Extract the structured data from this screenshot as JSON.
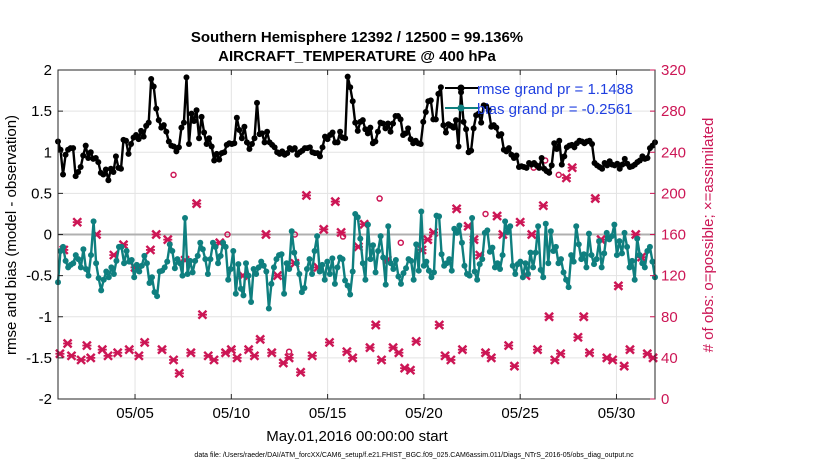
{
  "chart_data": {
    "type": "line",
    "title_line1": "Southern Hemisphere 12392 / 12500 = 99.136%",
    "title_line2": "AIRCRAFT_TEMPERATURE @ 400 hPa",
    "xlabel": "May.01,2016 00:00:00 start",
    "ylabel": "rmse and bias (model - observation)",
    "y2label": "# of obs: o=possible; ×=assimilated",
    "footnote": "data file: /Users/raeder/DAI/ATM_forcXX/CAM6_setup/f.e21.FHIST_BGC.f09_025.CAM6assim.011/Diags_NTrS_2016-05/obs_diag_output.nc",
    "xlim": [
      1,
      32
    ],
    "ylim": [
      -2,
      2
    ],
    "y2lim": [
      0,
      320
    ],
    "xticks": [
      5,
      10,
      15,
      20,
      25,
      30
    ],
    "xtick_labels": [
      "05/05",
      "05/10",
      "05/15",
      "05/20",
      "05/25",
      "05/30"
    ],
    "yticks": [
      2,
      1.5,
      1,
      0.5,
      0,
      -0.5,
      -1,
      -1.5,
      -2
    ],
    "ytick_labels": [
      "2",
      "1.5",
      "1",
      "0.5",
      "0",
      "-0.5",
      "-1",
      "-1.5",
      "-2"
    ],
    "y2ticks": [
      320,
      280,
      240,
      200,
      160,
      120,
      80,
      40,
      0
    ],
    "y2tick_labels": [
      "320",
      "280",
      "240",
      "200",
      "160",
      "120",
      "80",
      "40",
      "0"
    ],
    "colors": {
      "rmse": "#000000",
      "bias": "#0f7f7f",
      "obs": "#cc1655",
      "legend_text": "#1f3fe0",
      "zero_line": "#b0b0b0"
    },
    "series": [
      {
        "name": "rmse",
        "label": "rmse grand pr = 1.1488",
        "values": [
          1.13,
          1.03,
          0.73,
          0.97,
          1.03,
          1.05,
          1.05,
          0.71,
          0.76,
          0.82,
          0.96,
          1.08,
          0.93,
          1.0,
          0.92,
          0.93,
          0.88,
          0.75,
          0.73,
          0.79,
          0.66,
          0.8,
          0.76,
          0.95,
          0.81,
          0.8,
          1.15,
          1.14,
          0.98,
          1.1,
          1.18,
          1.21,
          1.16,
          1.26,
          1.19,
          1.32,
          1.36,
          1.89,
          1.8,
          1.53,
          1.39,
          1.3,
          1.33,
          1.25,
          1.13,
          1.08,
          1.07,
          1.01,
          1.06,
          1.3,
          1.36,
          1.91,
          1.1,
          1.47,
          1.38,
          1.51,
          1.17,
          1.43,
          1.24,
          1.1,
          1.17,
          1.07,
          0.9,
          0.98,
          0.91,
          0.99,
          1.0,
          1.09,
          1.11,
          1.1,
          1.11,
          1.42,
          1.27,
          1.17,
          1.31,
          1.12,
          1.04,
          1.1,
          1.17,
          1.6,
          1.22,
          1.23,
          1.12,
          1.25,
          1.12,
          1.09,
          1.06,
          1.0,
          0.98,
          1.01,
          0.97,
          0.99,
          1.05,
          1.03,
          1.05,
          0.97,
          1.0,
          1.02,
          1.05,
          1.05,
          1.06,
          1.0,
          0.99,
          0.99,
          0.95,
          1.06,
          1.19,
          1.16,
          1.21,
          1.24,
          1.12,
          1.12,
          1.25,
          1.18,
          1.17,
          1.92,
          1.79,
          1.62,
          1.36,
          1.26,
          1.37,
          1.39,
          1.28,
          1.23,
          1.3,
          1.11,
          1.13,
          1.25,
          1.36,
          1.35,
          1.29,
          1.35,
          1.25,
          1.35,
          1.44,
          1.44,
          1.4,
          1.21,
          1.23,
          1.29,
          1.16,
          1.11,
          1.14,
          1.11,
          1.1,
          1.37,
          1.49,
          1.62,
          1.63,
          1.4,
          1.4,
          1.71,
          1.79,
          1.33,
          1.24,
          1.34,
          1.32,
          1.3,
          1.39,
          1.07,
          1.73,
          1.37,
          1.28,
          1.0,
          1.02,
          1.29,
          1.45,
          1.47,
          1.36,
          1.57,
          1.56,
          1.51,
          1.31,
          1.33,
          1.3,
          1.2,
          1.22,
          1.03,
          1.01,
          1.05,
          0.97,
          0.93,
          0.96,
          0.82,
          0.83,
          0.82,
          0.81,
          0.87,
          0.85,
          0.87,
          0.84,
          0.81,
          0.93,
          0.8,
          0.77,
          0.75,
          0.84,
          1.11,
          1.04,
          1.14,
          0.85,
          0.95,
          1.06,
          1.08,
          1.09,
          1.06,
          1.11,
          1.14,
          1.13,
          1.11,
          1.13,
          1.14,
          1.1,
          0.87,
          0.84,
          0.82,
          0.8,
          0.87,
          0.84,
          0.89,
          0.85,
          0.84,
          0.86,
          0.8,
          0.85,
          0.92,
          0.86,
          0.82,
          0.83,
          0.85,
          0.88,
          0.9,
          0.95,
          0.92,
          0.93,
          1.05,
          1.08,
          1.12
        ]
      },
      {
        "name": "bias",
        "label": "bias grand pr = -0.2561",
        "values": [
          -0.58,
          -0.2,
          -0.15,
          -0.32,
          -0.4,
          -0.37,
          -0.35,
          -0.25,
          -0.3,
          -0.4,
          -0.18,
          -0.42,
          -0.5,
          -0.25,
          0.16,
          -0.35,
          -0.53,
          -0.68,
          -0.55,
          -0.45,
          -0.52,
          -0.4,
          -0.48,
          -0.32,
          -0.15,
          -0.15,
          -0.35,
          -0.2,
          -0.33,
          -0.31,
          -0.52,
          -0.37,
          -0.45,
          -0.38,
          -0.26,
          -0.35,
          -0.59,
          -0.52,
          -0.7,
          -0.75,
          -0.45,
          -0.44,
          -0.4,
          -0.33,
          -0.12,
          -0.2,
          -0.41,
          -0.3,
          -0.35,
          -0.5,
          0.2,
          -0.48,
          -0.32,
          -0.46,
          -0.32,
          -0.26,
          -0.1,
          -0.18,
          -0.3,
          -0.48,
          -0.3,
          -0.1,
          -0.15,
          -0.35,
          -0.26,
          -0.1,
          -0.15,
          -0.55,
          -0.42,
          -0.2,
          -0.72,
          -0.36,
          -0.66,
          -0.74,
          -0.35,
          -0.5,
          -0.82,
          -0.42,
          -0.48,
          -0.4,
          -0.33,
          -0.38,
          -0.45,
          -0.9,
          -0.6,
          -0.4,
          -0.3,
          -0.25,
          -0.24,
          -0.72,
          -0.35,
          -0.42,
          0.04,
          -0.22,
          -0.35,
          -0.48,
          -0.7,
          -0.65,
          -0.42,
          -0.3,
          -0.48,
          -0.2,
          -0.02,
          -0.45,
          -0.37,
          -0.55,
          -0.33,
          -0.48,
          -0.29,
          -0.6,
          -0.4,
          -0.28,
          -0.3,
          -0.56,
          -0.62,
          -0.73,
          -0.45,
          0.25,
          0.21,
          -0.05,
          -0.35,
          -0.55,
          0.12,
          -0.3,
          -0.13,
          -0.46,
          -0.2,
          -0.02,
          -0.28,
          -0.61,
          0.1,
          -0.35,
          -0.42,
          -0.31,
          -0.51,
          -0.6,
          -0.47,
          -0.41,
          -0.3,
          -0.32,
          -0.55,
          -0.12,
          -0.44,
          0.28,
          -0.38,
          -0.33,
          -0.44,
          -0.52,
          -0.46,
          0.23,
          0.22,
          -0.24,
          -0.38,
          -0.35,
          -0.3,
          -0.44,
          0.07,
          0.02,
          0.11,
          -0.1,
          -0.38,
          -0.48,
          -0.5,
          0.2,
          -0.45,
          -0.55,
          -0.36,
          -0.3,
          0.02,
          0.05,
          -0.21,
          -0.16,
          -0.4,
          -0.35,
          -0.42,
          -0.25,
          0.16,
          0.03,
          0.1,
          -0.38,
          -0.48,
          -0.36,
          -0.33,
          -0.52,
          -0.35,
          -0.48,
          -0.22,
          -0.4,
          -0.22,
          0.1,
          -0.43,
          -0.52,
          0.13,
          -0.35,
          0.04,
          -0.2,
          -0.15,
          -0.35,
          -0.3,
          -0.46,
          -0.55,
          -0.64,
          -0.25,
          -0.33,
          0.1,
          -0.12,
          -0.3,
          -0.24,
          -0.4,
          0.01,
          -0.25,
          -0.36,
          -0.3,
          -0.08,
          -0.4,
          -0.23,
          0.02,
          -0.06,
          -0.02,
          0.12,
          -0.25,
          -0.08,
          -0.23,
          0.02,
          -0.15,
          -0.4,
          -0.32,
          -0.55,
          -0.05,
          -0.25,
          -0.35,
          -0.4,
          -0.2,
          -0.15,
          -0.33,
          -0.52
        ]
      },
      {
        "name": "obs_assimilated",
        "label": "assimilated",
        "x": [
          1.1,
          1.3,
          1.5,
          1.7,
          2.0,
          2.2,
          2.5,
          2.7,
          3.0,
          3.3,
          3.6,
          3.9,
          4.1,
          4.4,
          4.7,
          5.0,
          5.2,
          5.5,
          5.8,
          6.1,
          6.4,
          6.7,
          7.0,
          7.3,
          7.6,
          7.9,
          8.2,
          8.5,
          8.8,
          9.1,
          9.4,
          9.7,
          10.0,
          10.3,
          10.6,
          10.9,
          11.2,
          11.5,
          11.8,
          12.1,
          12.4,
          12.7,
          13.0,
          13.3,
          13.6,
          13.9,
          14.2,
          14.5,
          14.8,
          15.1,
          15.4,
          15.7,
          16.0,
          16.3,
          16.6,
          16.9,
          17.2,
          17.5,
          17.8,
          18.1,
          18.4,
          18.7,
          19.0,
          19.3,
          19.6,
          19.9,
          20.2,
          20.5,
          20.8,
          21.1,
          21.4,
          21.7,
          22.0,
          22.3,
          22.6,
          22.9,
          23.2,
          23.5,
          23.8,
          24.1,
          24.4,
          24.7,
          25.0,
          25.3,
          25.6,
          25.9,
          26.2,
          26.5,
          26.8,
          27.1,
          27.4,
          27.7,
          28.0,
          28.3,
          28.6,
          28.9,
          29.2,
          29.5,
          29.8,
          30.1,
          30.4,
          30.7,
          31.0,
          31.3,
          31.6,
          31.9
        ],
        "values": [
          44,
          145,
          54,
          42,
          172,
          38,
          52,
          40,
          160,
          48,
          42,
          140,
          45,
          150,
          48,
          128,
          42,
          55,
          145,
          160,
          48,
          155,
          38,
          25,
          135,
          45,
          190,
          82,
          42,
          38,
          152,
          45,
          48,
          40,
          120,
          48,
          42,
          58,
          160,
          45,
          120,
          35,
          40,
          132,
          26,
          198,
          42,
          128,
          165,
          55,
          192,
          162,
          46,
          40,
          148,
          170,
          50,
          72,
          38,
          135,
          50,
          45,
          30,
          28,
          56,
          145,
          155,
          162,
          72,
          42,
          38,
          185,
          48,
          168,
          155,
          140,
          45,
          40,
          178,
          160,
          52,
          32,
          172,
          120,
          160,
          48,
          188,
          80,
          38,
          44,
          215,
          225,
          60,
          80,
          45,
          195,
          155,
          40,
          38,
          110,
          32,
          48,
          160,
          138,
          44,
          40
        ]
      },
      {
        "name": "obs_possible",
        "label": "possible",
        "x": [
          7.0,
          9.8,
          13.3,
          15.8,
          17.7,
          18.8,
          23.2,
          25.7,
          26.3,
          27.0,
          13.0
        ],
        "values": [
          218,
          160,
          160,
          158,
          195,
          152,
          180,
          225,
          232,
          218,
          46
        ]
      }
    ]
  }
}
